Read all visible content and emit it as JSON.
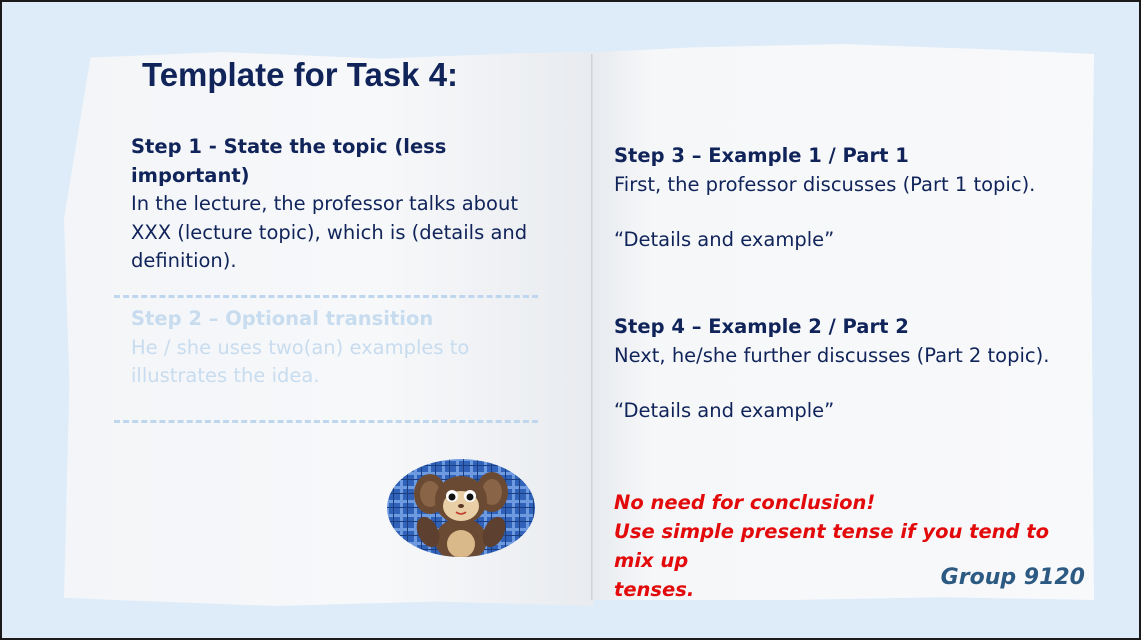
{
  "title": "Template for Task 4:",
  "step1": {
    "heading": "Step 1 - State the topic (less important)",
    "lines": [
      "In the lecture, the professor talks about",
      "XXX (lecture topic), which is (details and",
      "definition)."
    ]
  },
  "step2": {
    "heading": "Step 2 – Optional transition",
    "lines": [
      "He / she uses two(an) examples to",
      "illustrates the idea."
    ]
  },
  "step3": {
    "heading": "Step 3 – Example 1 / Part 1",
    "line": "First, the professor discusses (Part 1 topic).",
    "quote": "“Details and example”"
  },
  "step4": {
    "heading": "Step 4 – Example 2 / Part 2",
    "line": "Next, he/she further discusses (Part 2 topic).",
    "quote": "“Details and example”"
  },
  "notes": {
    "line1": "No need for conclusion!",
    "line2": "Use simple present tense if you tend to mix up",
    "line3": "tenses."
  },
  "footer": "Group 9120",
  "colors": {
    "title": "#10245a",
    "faded_step": "#c8dcef",
    "warning": "#e20a0a",
    "group": "#2c5a82"
  },
  "image": "plush-toy-photo"
}
